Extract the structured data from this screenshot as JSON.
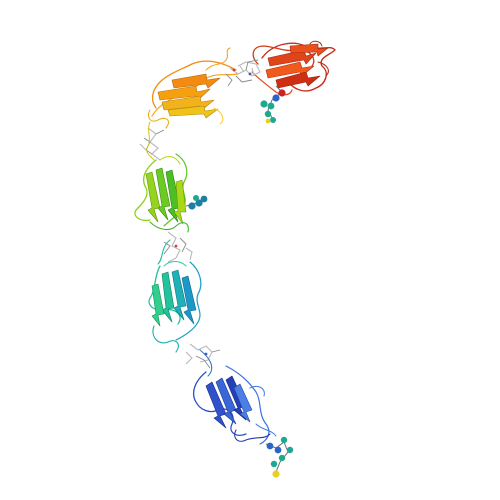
{
  "scene": {
    "background": "#ffffff",
    "domains": [
      {
        "name": "domain-1",
        "color": "#d93a14",
        "accent": "#f06a1e"
      },
      {
        "name": "domain-2",
        "color": "#f59a0c",
        "accent": "#f0c21a"
      },
      {
        "name": "domain-3",
        "color": "#7fd21c",
        "accent": "#3fbf2a"
      },
      {
        "name": "domain-4",
        "color": "#22b7a8",
        "accent": "#1e8fc9"
      },
      {
        "name": "domain-5",
        "color": "#2845c9",
        "accent": "#3a6ee0"
      }
    ],
    "glycan_colors": {
      "mannose": "#1fa890",
      "glcnac": "#2a66c9",
      "fucose": "#c8242a",
      "galactose": "#e8d020"
    }
  }
}
